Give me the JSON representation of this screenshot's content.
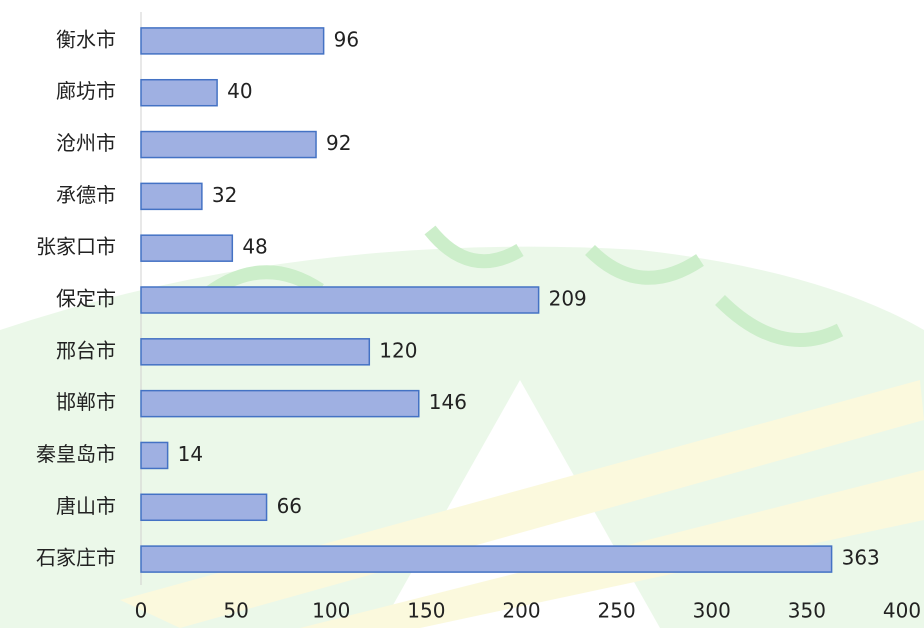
{
  "chart_data": {
    "type": "bar",
    "orientation": "horizontal",
    "categories": [
      "衡水市",
      "廊坊市",
      "沧州市",
      "承德市",
      "张家口市",
      "保定市",
      "邢台市",
      "邯郸市",
      "秦皇岛市",
      "唐山市",
      "石家庄市"
    ],
    "values": [
      96,
      40,
      92,
      32,
      48,
      209,
      120,
      146,
      14,
      66,
      363
    ],
    "color": "#9fb0e2",
    "xlim": [
      0,
      400
    ],
    "xticks": [
      0,
      50,
      100,
      150,
      200,
      250,
      300,
      350,
      400
    ],
    "grid": false
  }
}
